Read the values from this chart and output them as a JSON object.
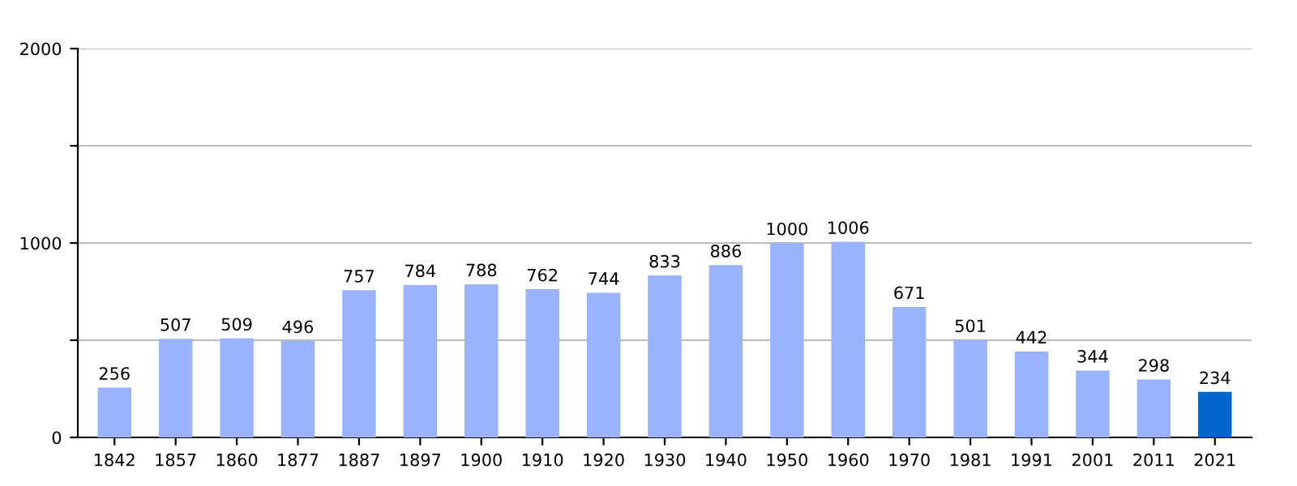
{
  "chart_data": {
    "type": "bar",
    "categories": [
      "1842",
      "1857",
      "1860",
      "1877",
      "1887",
      "1897",
      "1900",
      "1910",
      "1920",
      "1930",
      "1940",
      "1950",
      "1960",
      "1970",
      "1981",
      "1991",
      "2001",
      "2011",
      "2021"
    ],
    "values": [
      256,
      507,
      509,
      496,
      757,
      784,
      788,
      762,
      744,
      833,
      886,
      1000,
      1006,
      671,
      501,
      442,
      344,
      298,
      234
    ],
    "colors": [
      "#99b3ff",
      "#99b3ff",
      "#99b3ff",
      "#99b3ff",
      "#99b3ff",
      "#99b3ff",
      "#99b3ff",
      "#99b3ff",
      "#99b3ff",
      "#99b3ff",
      "#99b3ff",
      "#99b3ff",
      "#99b3ff",
      "#99b3ff",
      "#99b3ff",
      "#99b3ff",
      "#99b3ff",
      "#99b3ff",
      "#0066cc"
    ],
    "ylim": [
      0,
      2000
    ],
    "yticks": [
      0,
      {
        "value": 500,
        "label": null
      },
      1000,
      {
        "value": 1500,
        "label": null
      },
      2000
    ],
    "grid": "y",
    "data_labels": true
  }
}
